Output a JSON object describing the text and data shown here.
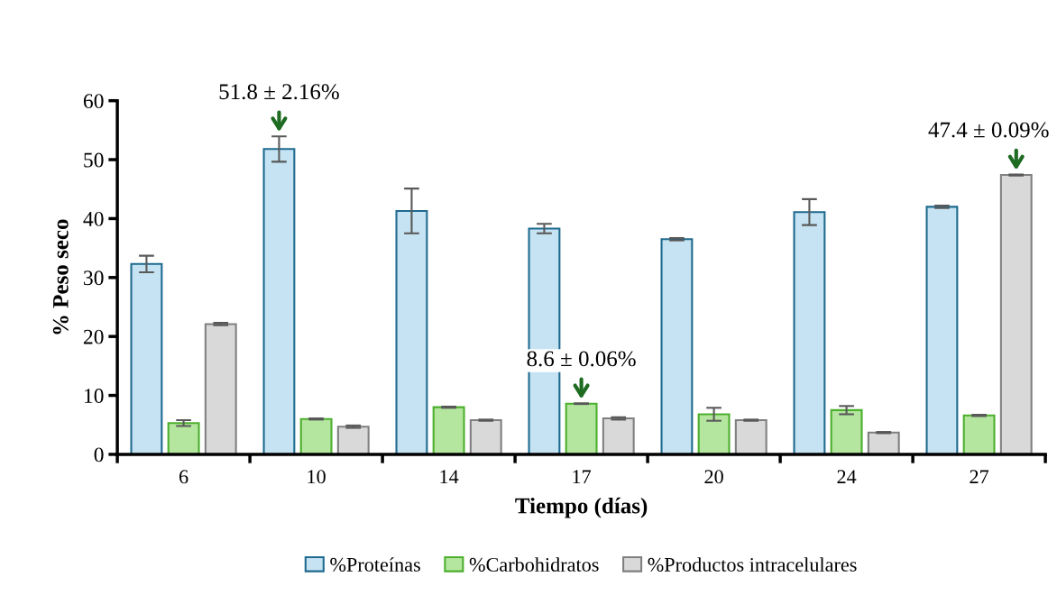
{
  "chart_data": {
    "type": "bar",
    "xlabel": "Tiempo (días)",
    "ylabel": "% Peso seco",
    "categories": [
      "6",
      "10",
      "14",
      "17",
      "20",
      "24",
      "27"
    ],
    "series": [
      {
        "name": "%Proteínas",
        "color": "#c5e3f3",
        "values": [
          32.3,
          51.8,
          41.3,
          38.3,
          36.5,
          41.1,
          42.0
        ],
        "errors": [
          1.4,
          2.16,
          3.8,
          0.8,
          0.2,
          2.2,
          0.2
        ]
      },
      {
        "name": "%Carbohidratos",
        "color": "#b5e6a0",
        "values": [
          5.3,
          6.0,
          8.0,
          8.6,
          6.8,
          7.5,
          6.6
        ],
        "errors": [
          0.5,
          0.1,
          0.1,
          0.06,
          1.1,
          0.7,
          0.1
        ]
      },
      {
        "name": "%Productos intracelulares",
        "color": "#d9d9d9",
        "values": [
          22.1,
          4.7,
          5.8,
          6.1,
          5.8,
          3.7,
          47.4
        ],
        "errors": [
          0.2,
          0.2,
          0.1,
          0.2,
          0.1,
          0.1,
          0.09
        ]
      }
    ],
    "ylim": [
      0,
      60
    ],
    "yticks": [
      0,
      10,
      20,
      30,
      40,
      50,
      60
    ],
    "grid": false,
    "legend": "bottom",
    "annotations": [
      "51.8 ± 2.16%",
      "8.6 ± 0.06%",
      "47.4 ± 0.09%"
    ]
  }
}
